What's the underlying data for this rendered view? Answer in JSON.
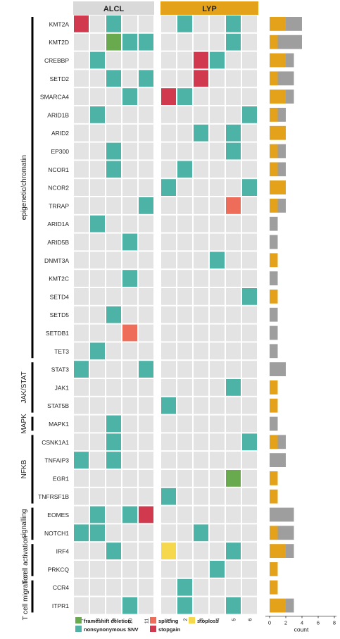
{
  "chart_data": {
    "type": "heatmap",
    "title": "",
    "panels": [
      "ALCL",
      "LYP"
    ],
    "panel_colors": {
      "ALCL": "#d9d9d9",
      "LYP": "#e3a21a"
    },
    "samples": {
      "ALCL": [
        "7",
        "8",
        "9",
        "10",
        "11"
      ],
      "LYP": [
        "1",
        "2",
        "3",
        "4",
        "5",
        "6"
      ]
    },
    "genes": [
      "KMT2A",
      "KMT2D",
      "CREBBP",
      "SETD2",
      "SMARCA4",
      "ARID1B",
      "ARID2",
      "EP300",
      "NCOR1",
      "NCOR2",
      "TRRAP",
      "ARID1A",
      "ARID5B",
      "DNMT3A",
      "KMT2C",
      "SETD4",
      "SETD5",
      "SETDB1",
      "TET3",
      "STAT3",
      "JAK1",
      "STAT5B",
      "MAPK1",
      "CSNK1A1",
      "TNFAIP3",
      "EGR1",
      "TNFRSF1B",
      "EOMES",
      "NOTCH1",
      "IRF4",
      "PRKCQ",
      "CCR4",
      "ITPR1"
    ],
    "groups": [
      {
        "label": "epigenetic/chromatin",
        "start": 0,
        "end": 18
      },
      {
        "label": "JAK/STAT",
        "start": 19,
        "end": 21
      },
      {
        "label": "MAPK",
        "start": 22,
        "end": 22
      },
      {
        "label": "NFKB",
        "start": 23,
        "end": 26
      },
      {
        "label": "signalling",
        "start": 27,
        "end": 28
      },
      {
        "label": "T cell activation",
        "start": 29,
        "end": 30
      },
      {
        "label": "T cell migration",
        "start": 31,
        "end": 32
      }
    ],
    "mutation_colors": {
      "frameshift deletion": "#6aaa4e",
      "nonsynonymous SNV": "#4db3a6",
      "splicing": "#ee6d5a",
      "stopgain": "#d13a4e",
      "stoploss": "#f6d84c"
    },
    "legend": {
      "items": [
        "frameshift deletion",
        "nonsynonymous SNV",
        "splicing",
        "stopgain",
        "stoploss"
      ],
      "position": "bottom"
    },
    "mutations": [
      {
        "gene": "KMT2A",
        "panel": "ALCL",
        "sample": "7",
        "type": "stopgain"
      },
      {
        "gene": "KMT2A",
        "panel": "ALCL",
        "sample": "9",
        "type": "nonsynonymous SNV"
      },
      {
        "gene": "KMT2A",
        "panel": "LYP",
        "sample": "2",
        "type": "nonsynonymous SNV"
      },
      {
        "gene": "KMT2A",
        "panel": "LYP",
        "sample": "5",
        "type": "nonsynonymous SNV"
      },
      {
        "gene": "KMT2D",
        "panel": "ALCL",
        "sample": "9",
        "type": "frameshift deletion"
      },
      {
        "gene": "KMT2D",
        "panel": "ALCL",
        "sample": "10",
        "type": "nonsynonymous SNV"
      },
      {
        "gene": "KMT2D",
        "panel": "ALCL",
        "sample": "11",
        "type": "nonsynonymous SNV"
      },
      {
        "gene": "KMT2D",
        "panel": "LYP",
        "sample": "5",
        "type": "nonsynonymous SNV"
      },
      {
        "gene": "CREBBP",
        "panel": "ALCL",
        "sample": "8",
        "type": "nonsynonymous SNV"
      },
      {
        "gene": "CREBBP",
        "panel": "LYP",
        "sample": "3",
        "type": "stopgain"
      },
      {
        "gene": "CREBBP",
        "panel": "LYP",
        "sample": "4",
        "type": "nonsynonymous SNV"
      },
      {
        "gene": "SETD2",
        "panel": "ALCL",
        "sample": "9",
        "type": "nonsynonymous SNV"
      },
      {
        "gene": "SETD2",
        "panel": "ALCL",
        "sample": "11",
        "type": "nonsynonymous SNV"
      },
      {
        "gene": "SETD2",
        "panel": "LYP",
        "sample": "3",
        "type": "stopgain"
      },
      {
        "gene": "SMARCA4",
        "panel": "ALCL",
        "sample": "10",
        "type": "nonsynonymous SNV"
      },
      {
        "gene": "SMARCA4",
        "panel": "LYP",
        "sample": "1",
        "type": "stopgain"
      },
      {
        "gene": "SMARCA4",
        "panel": "LYP",
        "sample": "2",
        "type": "nonsynonymous SNV"
      },
      {
        "gene": "ARID1B",
        "panel": "ALCL",
        "sample": "8",
        "type": "nonsynonymous SNV"
      },
      {
        "gene": "ARID1B",
        "panel": "LYP",
        "sample": "6",
        "type": "nonsynonymous SNV"
      },
      {
        "gene": "ARID2",
        "panel": "LYP",
        "sample": "3",
        "type": "nonsynonymous SNV"
      },
      {
        "gene": "ARID2",
        "panel": "LYP",
        "sample": "5",
        "type": "nonsynonymous SNV"
      },
      {
        "gene": "EP300",
        "panel": "ALCL",
        "sample": "9",
        "type": "nonsynonymous SNV"
      },
      {
        "gene": "EP300",
        "panel": "LYP",
        "sample": "5",
        "type": "nonsynonymous SNV"
      },
      {
        "gene": "NCOR1",
        "panel": "ALCL",
        "sample": "9",
        "type": "nonsynonymous SNV"
      },
      {
        "gene": "NCOR1",
        "panel": "LYP",
        "sample": "2",
        "type": "nonsynonymous SNV"
      },
      {
        "gene": "NCOR2",
        "panel": "LYP",
        "sample": "1",
        "type": "nonsynonymous SNV"
      },
      {
        "gene": "NCOR2",
        "panel": "LYP",
        "sample": "6",
        "type": "nonsynonymous SNV"
      },
      {
        "gene": "TRRAP",
        "panel": "ALCL",
        "sample": "11",
        "type": "nonsynonymous SNV"
      },
      {
        "gene": "TRRAP",
        "panel": "LYP",
        "sample": "5",
        "type": "splicing"
      },
      {
        "gene": "ARID1A",
        "panel": "ALCL",
        "sample": "8",
        "type": "nonsynonymous SNV"
      },
      {
        "gene": "ARID5B",
        "panel": "ALCL",
        "sample": "10",
        "type": "nonsynonymous SNV"
      },
      {
        "gene": "DNMT3A",
        "panel": "LYP",
        "sample": "4",
        "type": "nonsynonymous SNV"
      },
      {
        "gene": "KMT2C",
        "panel": "ALCL",
        "sample": "10",
        "type": "nonsynonymous SNV"
      },
      {
        "gene": "SETD4",
        "panel": "LYP",
        "sample": "6",
        "type": "nonsynonymous SNV"
      },
      {
        "gene": "SETD5",
        "panel": "ALCL",
        "sample": "9",
        "type": "nonsynonymous SNV"
      },
      {
        "gene": "SETDB1",
        "panel": "ALCL",
        "sample": "10",
        "type": "splicing"
      },
      {
        "gene": "TET3",
        "panel": "ALCL",
        "sample": "8",
        "type": "nonsynonymous SNV"
      },
      {
        "gene": "STAT3",
        "panel": "ALCL",
        "sample": "7",
        "type": "nonsynonymous SNV"
      },
      {
        "gene": "STAT3",
        "panel": "ALCL",
        "sample": "11",
        "type": "nonsynonymous SNV"
      },
      {
        "gene": "JAK1",
        "panel": "LYP",
        "sample": "5",
        "type": "nonsynonymous SNV"
      },
      {
        "gene": "STAT5B",
        "panel": "LYP",
        "sample": "1",
        "type": "nonsynonymous SNV"
      },
      {
        "gene": "MAPK1",
        "panel": "ALCL",
        "sample": "9",
        "type": "nonsynonymous SNV"
      },
      {
        "gene": "CSNK1A1",
        "panel": "ALCL",
        "sample": "9",
        "type": "nonsynonymous SNV"
      },
      {
        "gene": "CSNK1A1",
        "panel": "LYP",
        "sample": "6",
        "type": "nonsynonymous SNV"
      },
      {
        "gene": "TNFAIP3",
        "panel": "ALCL",
        "sample": "7",
        "type": "nonsynonymous SNV"
      },
      {
        "gene": "TNFAIP3",
        "panel": "ALCL",
        "sample": "9",
        "type": "nonsynonymous SNV"
      },
      {
        "gene": "EGR1",
        "panel": "LYP",
        "sample": "5",
        "type": "frameshift deletion"
      },
      {
        "gene": "TNFRSF1B",
        "panel": "LYP",
        "sample": "1",
        "type": "nonsynonymous SNV"
      },
      {
        "gene": "EOMES",
        "panel": "ALCL",
        "sample": "8",
        "type": "nonsynonymous SNV"
      },
      {
        "gene": "EOMES",
        "panel": "ALCL",
        "sample": "10",
        "type": "nonsynonymous SNV"
      },
      {
        "gene": "EOMES",
        "panel": "ALCL",
        "sample": "11",
        "type": "stopgain"
      },
      {
        "gene": "NOTCH1",
        "panel": "ALCL",
        "sample": "7",
        "type": "nonsynonymous SNV"
      },
      {
        "gene": "NOTCH1",
        "panel": "ALCL",
        "sample": "8",
        "type": "nonsynonymous SNV"
      },
      {
        "gene": "NOTCH1",
        "panel": "LYP",
        "sample": "3",
        "type": "nonsynonymous SNV"
      },
      {
        "gene": "IRF4",
        "panel": "ALCL",
        "sample": "9",
        "type": "nonsynonymous SNV"
      },
      {
        "gene": "IRF4",
        "panel": "LYP",
        "sample": "1",
        "type": "stoploss"
      },
      {
        "gene": "IRF4",
        "panel": "LYP",
        "sample": "5",
        "type": "nonsynonymous SNV"
      },
      {
        "gene": "PRKCQ",
        "panel": "LYP",
        "sample": "4",
        "type": "nonsynonymous SNV"
      },
      {
        "gene": "CCR4",
        "panel": "LYP",
        "sample": "2",
        "type": "nonsynonymous SNV"
      },
      {
        "gene": "ITPR1",
        "panel": "ALCL",
        "sample": "10",
        "type": "nonsynonymous SNV"
      },
      {
        "gene": "ITPR1",
        "panel": "LYP",
        "sample": "2",
        "type": "nonsynonymous SNV"
      },
      {
        "gene": "ITPR1",
        "panel": "LYP",
        "sample": "5",
        "type": "nonsynonymous SNV"
      }
    ],
    "count_bars": {
      "xlabel": "count",
      "xlim": [
        0,
        8
      ],
      "xticks": [
        "0",
        "2",
        "4",
        "6",
        "8"
      ],
      "series": [
        {
          "name": "LYP",
          "color": "#e3a21a"
        },
        {
          "name": "ALCL",
          "color": "#9e9e9e"
        }
      ],
      "values": [
        {
          "gene": "KMT2A",
          "LYP": 2,
          "ALCL": 2
        },
        {
          "gene": "KMT2D",
          "LYP": 1,
          "ALCL": 3
        },
        {
          "gene": "CREBBP",
          "LYP": 2,
          "ALCL": 1
        },
        {
          "gene": "SETD2",
          "LYP": 1,
          "ALCL": 2
        },
        {
          "gene": "SMARCA4",
          "LYP": 2,
          "ALCL": 1
        },
        {
          "gene": "ARID1B",
          "LYP": 1,
          "ALCL": 1
        },
        {
          "gene": "ARID2",
          "LYP": 2,
          "ALCL": 0
        },
        {
          "gene": "EP300",
          "LYP": 1,
          "ALCL": 1
        },
        {
          "gene": "NCOR1",
          "LYP": 1,
          "ALCL": 1
        },
        {
          "gene": "NCOR2",
          "LYP": 2,
          "ALCL": 0
        },
        {
          "gene": "TRRAP",
          "LYP": 1,
          "ALCL": 1
        },
        {
          "gene": "ARID1A",
          "LYP": 0,
          "ALCL": 1
        },
        {
          "gene": "ARID5B",
          "LYP": 0,
          "ALCL": 1
        },
        {
          "gene": "DNMT3A",
          "LYP": 1,
          "ALCL": 0
        },
        {
          "gene": "KMT2C",
          "LYP": 0,
          "ALCL": 1
        },
        {
          "gene": "SETD4",
          "LYP": 1,
          "ALCL": 0
        },
        {
          "gene": "SETD5",
          "LYP": 0,
          "ALCL": 1
        },
        {
          "gene": "SETDB1",
          "LYP": 0,
          "ALCL": 1
        },
        {
          "gene": "TET3",
          "LYP": 0,
          "ALCL": 1
        },
        {
          "gene": "STAT3",
          "LYP": 0,
          "ALCL": 2
        },
        {
          "gene": "JAK1",
          "LYP": 1,
          "ALCL": 0
        },
        {
          "gene": "STAT5B",
          "LYP": 1,
          "ALCL": 0
        },
        {
          "gene": "MAPK1",
          "LYP": 0,
          "ALCL": 1
        },
        {
          "gene": "CSNK1A1",
          "LYP": 1,
          "ALCL": 1
        },
        {
          "gene": "TNFAIP3",
          "LYP": 0,
          "ALCL": 2
        },
        {
          "gene": "EGR1",
          "LYP": 1,
          "ALCL": 0
        },
        {
          "gene": "TNFRSF1B",
          "LYP": 1,
          "ALCL": 0
        },
        {
          "gene": "EOMES",
          "LYP": 0,
          "ALCL": 3
        },
        {
          "gene": "NOTCH1",
          "LYP": 1,
          "ALCL": 2
        },
        {
          "gene": "IRF4",
          "LYP": 2,
          "ALCL": 1
        },
        {
          "gene": "PRKCQ",
          "LYP": 1,
          "ALCL": 0
        },
        {
          "gene": "CCR4",
          "LYP": 1,
          "ALCL": 0
        },
        {
          "gene": "ITPR1",
          "LYP": 2,
          "ALCL": 1
        }
      ]
    }
  }
}
